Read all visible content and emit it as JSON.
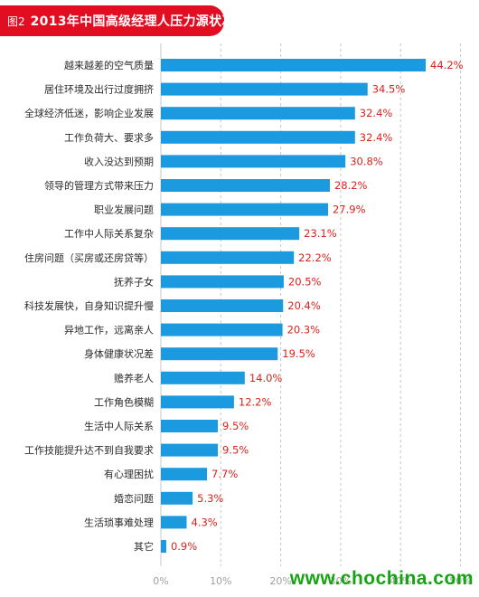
{
  "header": {
    "figure_label": "图2",
    "title": "2013年中国高级经理人压力源状况"
  },
  "chart_data": {
    "type": "bar",
    "orientation": "horizontal",
    "categories": [
      "越来越差的空气质量",
      "居住环境及出行过度拥挤",
      "全球经济低迷，影响企业发展",
      "工作负荷大、要求多",
      "收入没达到预期",
      "领导的管理方式带来压力",
      "职业发展问题",
      "工作中人际关系复杂",
      "住房问题（买房或还房贷等）",
      "抚养子女",
      "科技发展快，自身知识提升慢",
      "异地工作，远离亲人",
      "身体健康状况差",
      "赡养老人",
      "工作角色模糊",
      "生活中人际关系",
      "工作技能提升达不到自我要求",
      "有心理困扰",
      "婚恋问题",
      "生活琐事难处理",
      "其它"
    ],
    "values": [
      44.2,
      34.5,
      32.4,
      32.4,
      30.8,
      28.2,
      27.9,
      23.1,
      22.2,
      20.5,
      20.4,
      20.3,
      19.5,
      14.0,
      12.2,
      9.5,
      9.5,
      7.7,
      5.3,
      4.3,
      0.9
    ],
    "value_labels": [
      "44.2%",
      "34.5%",
      "32.4%",
      "32.4%",
      "30.8%",
      "28.2%",
      "27.9%",
      "23.1%",
      "22.2%",
      "20.5%",
      "20.4%",
      "20.3%",
      "19.5%",
      "14.0%",
      "12.2%",
      "9.5%",
      "9.5%",
      "7.7%",
      "5.3%",
      "4.3%",
      "0.9%"
    ],
    "x_ticks": [
      "0%",
      "10%",
      "20%",
      "30%",
      "40%",
      "50%"
    ],
    "xlim": [
      0,
      50
    ],
    "grid": true,
    "bar_color": "#1b9ae0",
    "value_label_color": "#d9241c",
    "grid_color": "#c8c8c8"
  },
  "watermark": "www.chochina.com",
  "colors": {
    "title_bg": "#e30d22",
    "title_text": "#ffffff",
    "watermark": "#15a312"
  }
}
